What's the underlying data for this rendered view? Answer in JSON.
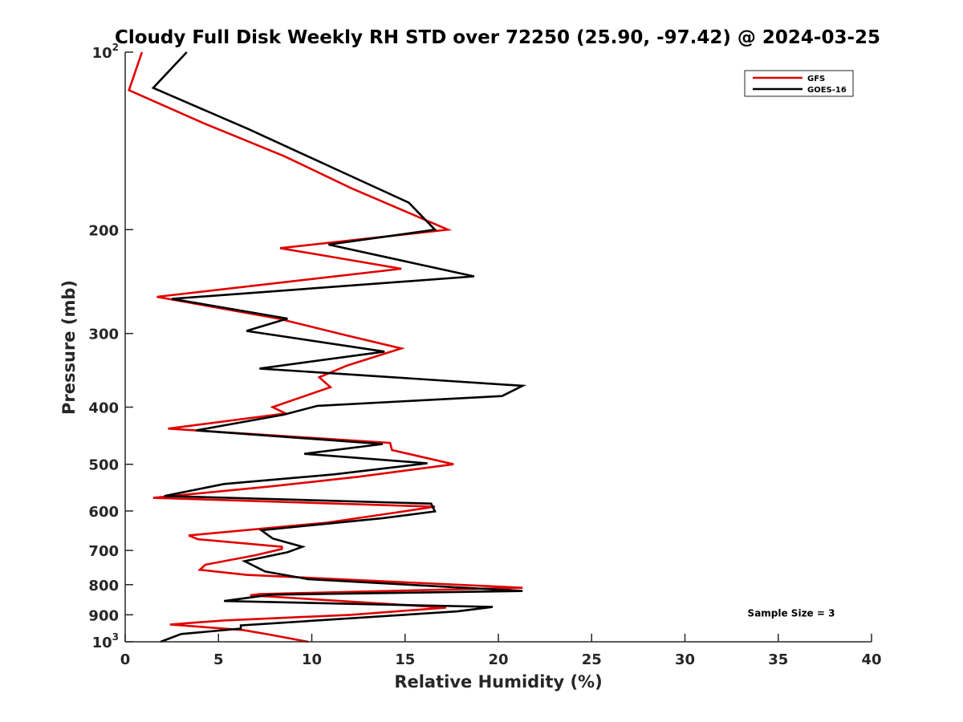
{
  "chart_data": {
    "type": "line",
    "title": "Cloudy Full Disk Weekly RH STD over 72250 (25.90, -97.42) @ 2024-03-25",
    "xlabel": "Relative Humidity (%)",
    "ylabel": "Pressure (mb)",
    "xlim": [
      0,
      40
    ],
    "ylim": [
      100,
      1000
    ],
    "yscale": "log",
    "y_reversed": true,
    "grid": false,
    "legend_position": "top-right",
    "x_ticks": [
      "0",
      "5",
      "10",
      "15",
      "20",
      "25",
      "30",
      "35",
      "40"
    ],
    "y_ticks": [
      {
        "value": 100,
        "label": "10",
        "sup": "2"
      },
      {
        "value": 200,
        "label": "200",
        "sup": ""
      },
      {
        "value": 300,
        "label": "300",
        "sup": ""
      },
      {
        "value": 400,
        "label": "400",
        "sup": ""
      },
      {
        "value": 500,
        "label": "500",
        "sup": ""
      },
      {
        "value": 600,
        "label": "600",
        "sup": ""
      },
      {
        "value": 700,
        "label": "700",
        "sup": ""
      },
      {
        "value": 800,
        "label": "800",
        "sup": ""
      },
      {
        "value": 900,
        "label": "900",
        "sup": ""
      },
      {
        "value": 1000,
        "label": "10",
        "sup": "3"
      }
    ],
    "series": [
      {
        "name": "GFS",
        "color": "#e00000",
        "points": [
          [
            0.9,
            100
          ],
          [
            0.2,
            116
          ],
          [
            4.2,
            132
          ],
          [
            8.5,
            150
          ],
          [
            12.1,
            170
          ],
          [
            17.3,
            200
          ],
          [
            8.3,
            215
          ],
          [
            14.8,
            233
          ],
          [
            1.7,
            260
          ],
          [
            8.2,
            283
          ],
          [
            11.8,
            302
          ],
          [
            14.8,
            318
          ],
          [
            11.9,
            340
          ],
          [
            10.4,
            356
          ],
          [
            11.0,
            370
          ],
          [
            7.9,
            400
          ],
          [
            8.6,
            410
          ],
          [
            2.3,
            435
          ],
          [
            14.2,
            460
          ],
          [
            14.3,
            473
          ],
          [
            17.6,
            500
          ],
          [
            12.5,
            525
          ],
          [
            7.8,
            545
          ],
          [
            1.5,
            570
          ],
          [
            16.6,
            590
          ],
          [
            14.3,
            605
          ],
          [
            10.8,
            628
          ],
          [
            3.4,
            660
          ],
          [
            3.9,
            670
          ],
          [
            8.4,
            690
          ],
          [
            8.4,
            696
          ],
          [
            7.0,
            713
          ],
          [
            4.3,
            740
          ],
          [
            4.0,
            755
          ],
          [
            6.5,
            770
          ],
          [
            21.3,
            810
          ],
          [
            7.2,
            830
          ],
          [
            6.7,
            834
          ],
          [
            17.2,
            875
          ],
          [
            12.1,
            900
          ],
          [
            5.3,
            920
          ],
          [
            2.4,
            935
          ],
          [
            6.3,
            955
          ],
          [
            7.7,
            972
          ],
          [
            9.8,
            1000
          ]
        ]
      },
      {
        "name": "GOES-16",
        "color": "#000000",
        "points": [
          [
            3.3,
            100
          ],
          [
            1.5,
            115
          ],
          [
            6.6,
            135
          ],
          [
            11.3,
            158
          ],
          [
            15.2,
            180
          ],
          [
            16.6,
            200
          ],
          [
            10.9,
            212
          ],
          [
            18.7,
            240
          ],
          [
            2.5,
            262
          ],
          [
            8.7,
            283
          ],
          [
            6.5,
            297
          ],
          [
            13.9,
            322
          ],
          [
            7.2,
            344
          ],
          [
            21.3,
            368
          ],
          [
            20.2,
            383
          ],
          [
            10.3,
            398
          ],
          [
            8.5,
            412
          ],
          [
            3.8,
            438
          ],
          [
            13.8,
            462
          ],
          [
            9.6,
            480
          ],
          [
            16.2,
            498
          ],
          [
            11.2,
            520
          ],
          [
            5.3,
            540
          ],
          [
            2.1,
            566
          ],
          [
            16.4,
            583
          ],
          [
            16.6,
            601
          ],
          [
            13.8,
            617
          ],
          [
            7.3,
            647
          ],
          [
            7.9,
            668
          ],
          [
            9.5,
            690
          ],
          [
            8.7,
            705
          ],
          [
            6.4,
            730
          ],
          [
            7.5,
            760
          ],
          [
            9.8,
            783
          ],
          [
            21.3,
            820
          ],
          [
            7.8,
            832
          ],
          [
            5.3,
            853
          ],
          [
            19.7,
            873
          ],
          [
            17.8,
            888
          ],
          [
            6.2,
            938
          ],
          [
            6.2,
            950
          ],
          [
            3.0,
            970
          ],
          [
            1.9,
            1000
          ]
        ]
      }
    ],
    "annotations": [
      {
        "text": "Sample Size = 3",
        "x": 35.7,
        "y": 895
      }
    ]
  }
}
